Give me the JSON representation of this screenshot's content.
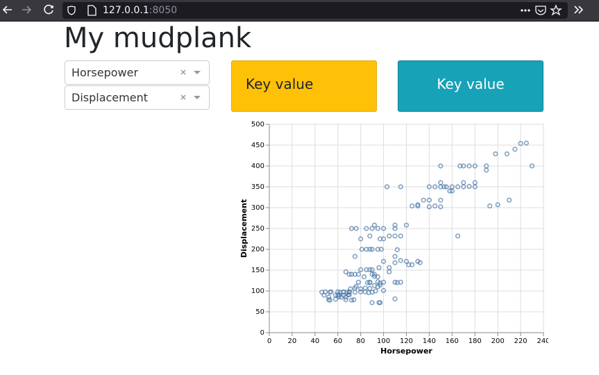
{
  "browser": {
    "url_host": "127.0.0.1",
    "url_port": ":8050"
  },
  "header": {
    "title": "My mudplank"
  },
  "dropdowns": [
    "Horsepower",
    "Displacement"
  ],
  "cards": [
    "Key value",
    "Key value"
  ],
  "chart_data": {
    "type": "scatter",
    "xlabel": "Horsepower",
    "ylabel": "Displacement",
    "color": "#4c78a8",
    "grid": true,
    "xlim": [
      0,
      240
    ],
    "ylim": [
      0,
      500
    ],
    "xticks": [
      0,
      20,
      40,
      60,
      80,
      100,
      120,
      140,
      160,
      180,
      200,
      220,
      240
    ],
    "yticks": [
      0,
      50,
      100,
      150,
      200,
      250,
      300,
      350,
      400,
      450,
      500
    ],
    "x": [
      46,
      48,
      49,
      52,
      52,
      53,
      54,
      58,
      60,
      60,
      61,
      62,
      65,
      65,
      65,
      67,
      67,
      68,
      69,
      70,
      70,
      70,
      71,
      72,
      74,
      75,
      75,
      76,
      78,
      80,
      80,
      84,
      84,
      88,
      88,
      90,
      90,
      92,
      95,
      96,
      97,
      100,
      105,
      110,
      112,
      115,
      90,
      96,
      97,
      110,
      67,
      70,
      72,
      75,
      78,
      80,
      85,
      88,
      90,
      92,
      95,
      100,
      105,
      110,
      115,
      120,
      122,
      125,
      130,
      132,
      72,
      76,
      80,
      85,
      88,
      90,
      95,
      97,
      100,
      100,
      105,
      110,
      110,
      110,
      115,
      85,
      88,
      90,
      95,
      98,
      81,
      75,
      110,
      112,
      120,
      125,
      130,
      130,
      135,
      140,
      140,
      145,
      150,
      150,
      150,
      150,
      140,
      145,
      160,
      165,
      170,
      175,
      175,
      180,
      180,
      190,
      198,
      208,
      215,
      225,
      230,
      220,
      193,
      200,
      210,
      165,
      103,
      115,
      150,
      170,
      167,
      170,
      180,
      190,
      158,
      153,
      155,
      160,
      92,
      93,
      95,
      97,
      83,
      86,
      88,
      92,
      100,
      87,
      53,
      58,
      61,
      63
    ],
    "values": [
      97,
      90,
      98,
      85,
      79,
      97,
      98,
      80,
      90,
      98,
      86,
      97,
      98,
      97,
      90,
      79,
      85,
      97,
      91,
      91,
      97,
      98,
      105,
      78,
      79,
      107,
      97,
      111,
      121,
      98,
      105,
      98,
      107,
      120,
      121,
      97,
      140,
      140,
      122,
      156,
      119,
      121,
      146,
      121,
      120,
      121,
      72,
      72,
      72,
      81,
      146,
      140,
      140,
      140,
      140,
      151,
      151,
      151,
      151,
      135,
      134,
      171,
      156,
      168,
      173,
      171,
      163,
      163,
      171,
      168,
      250,
      250,
      225,
      250,
      232,
      250,
      250,
      225,
      225,
      250,
      232,
      258,
      250,
      232,
      232,
      200,
      200,
      200,
      200,
      200,
      200,
      183,
      183,
      199,
      258,
      304,
      304,
      307,
      318,
      302,
      318,
      304,
      302,
      318,
      350,
      400,
      350,
      350,
      350,
      350,
      350,
      351,
      400,
      350,
      400,
      400,
      429,
      429,
      440,
      455,
      400,
      454,
      304,
      307,
      318,
      232,
      350,
      350,
      360,
      360,
      400,
      400,
      360,
      390,
      340,
      350,
      350,
      340,
      258,
      100,
      110,
      114,
      134,
      120,
      106,
      113,
      101,
      96,
      78,
      90,
      91,
      85
    ]
  }
}
